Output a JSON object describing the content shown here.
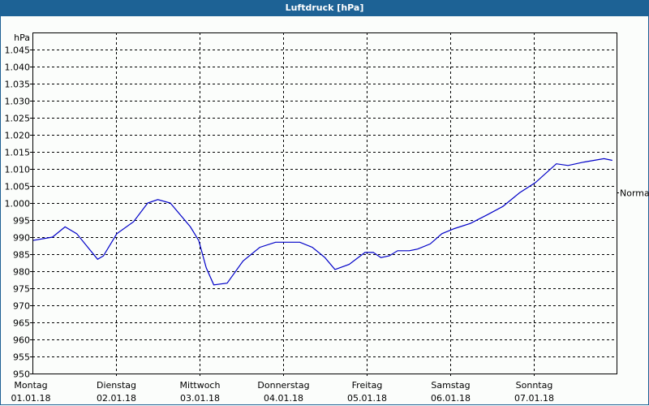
{
  "window": {
    "title": "Luftdruck [hPa]"
  },
  "chart_data": {
    "type": "line",
    "title": "Luftdruck [hPa]",
    "ylabel": "hPa",
    "xlabel": "",
    "ylim": [
      950,
      1048
    ],
    "y_ticks": [
      "1.045",
      "1.040",
      "1.035",
      "1.030",
      "1.025",
      "1.020",
      "1.015",
      "1.010",
      "1.005",
      "1.000",
      "995",
      "990",
      "985",
      "980",
      "975",
      "970",
      "965",
      "960",
      "955",
      "950"
    ],
    "y_tick_values": [
      1045,
      1040,
      1035,
      1030,
      1025,
      1020,
      1015,
      1010,
      1005,
      1000,
      995,
      990,
      985,
      980,
      975,
      970,
      965,
      960,
      955,
      950
    ],
    "x_ticks": [
      {
        "day": "Montag",
        "date": "01.01.18"
      },
      {
        "day": "Dienstag",
        "date": "02.01.18"
      },
      {
        "day": "Mittwoch",
        "date": "03.01.18"
      },
      {
        "day": "Donnerstag",
        "date": "04.01.18"
      },
      {
        "day": "Freitag",
        "date": "05.01.18"
      },
      {
        "day": "Samstag",
        "date": "06.01.18"
      },
      {
        "day": "Sonntag",
        "date": "07.01.18"
      }
    ],
    "grid": true,
    "reference_line": {
      "label": "Normal",
      "value": 1003
    },
    "series": [
      {
        "name": "Luftdruck",
        "color": "#0000c8",
        "x_days": [
          0.0,
          0.24,
          0.39,
          0.53,
          0.78,
          0.85,
          1.01,
          1.21,
          1.38,
          1.5,
          1.65,
          1.89,
          1.99,
          2.08,
          2.17,
          2.33,
          2.52,
          2.72,
          2.91,
          3.2,
          3.35,
          3.5,
          3.62,
          3.79,
          3.98,
          4.08,
          4.17,
          4.27,
          4.37,
          4.51,
          4.61,
          4.76,
          4.9,
          5.05,
          5.24,
          5.44,
          5.63,
          5.83,
          6.02,
          6.27,
          6.41,
          6.6,
          6.84,
          6.94
        ],
        "values": [
          989,
          990,
          993,
          991,
          983.5,
          984.5,
          991,
          994.5,
          1000,
          1001,
          1000,
          993,
          989,
          981,
          976,
          976.5,
          983,
          987,
          988.5,
          988.5,
          987,
          984,
          980.5,
          982,
          985.5,
          985.5,
          984,
          984.5,
          986,
          986,
          986.5,
          988,
          991,
          992.5,
          994,
          996.5,
          999,
          1003,
          1006,
          1011.5,
          1011,
          1012,
          1013,
          1012.5
        ]
      }
    ]
  },
  "colors": {
    "titlebar": "#1d6295",
    "line": "#0000c8",
    "background": "#fbfdfb"
  }
}
